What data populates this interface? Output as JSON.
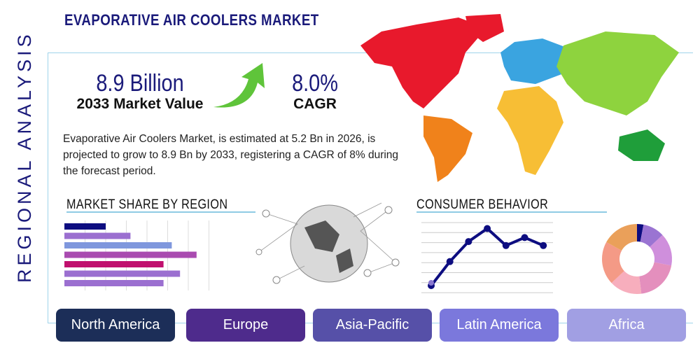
{
  "header": {
    "title": "EVAPORATIVE AIR COOLERS MARKET",
    "side_label": "REGIONAL ANALYSIS"
  },
  "kpis": {
    "market_value": "8.9 Billion",
    "market_value_label": "2033 Market Value",
    "cagr": "8.0%",
    "cagr_label": "CAGR"
  },
  "description": "Evaporative Air Coolers Market, is estimated at 5.2 Bn in 2026, is projected to grow to 8.9 Bn by 2033, registering a CAGR of 8% during the forecast period.",
  "sections": {
    "market_share": "MARKET SHARE BY REGION",
    "consumer": "CONSUMER BEHAVIOR"
  },
  "regions": [
    {
      "label": "North America",
      "color": "#1c2e58"
    },
    {
      "label": "Europe",
      "color": "#4e2b8c"
    },
    {
      "label": "Asia-Pacific",
      "color": "#5650a8"
    },
    {
      "label": "Latin America",
      "color": "#7b78dc"
    },
    {
      "label": "Africa",
      "color": "#a19fe3"
    }
  ],
  "chart_data": [
    {
      "type": "bar",
      "orientation": "horizontal",
      "values": [
        2,
        3.2,
        5.2,
        6.4,
        4.8,
        5.6,
        4.8
      ],
      "colors": [
        "#0d0d80",
        "#9b6fd0",
        "#7f97dd",
        "#a94bb0",
        "#c0106e",
        "#9b6fd0",
        "#9b6fd0"
      ],
      "grid": true
    },
    {
      "type": "line",
      "values": [
        0.7,
        3.1,
        5.1,
        6.4,
        4.7,
        5.5,
        4.7
      ],
      "color": "#0d0d80",
      "grid": true
    },
    {
      "type": "pie",
      "donut": true,
      "values": [
        3,
        10,
        15,
        20,
        15,
        20,
        17
      ],
      "colors": [
        "#0d0d80",
        "#9a74d2",
        "#cf8fdc",
        "#e48fbd",
        "#f7aebd",
        "#f49a86",
        "#eaa05a"
      ]
    }
  ]
}
